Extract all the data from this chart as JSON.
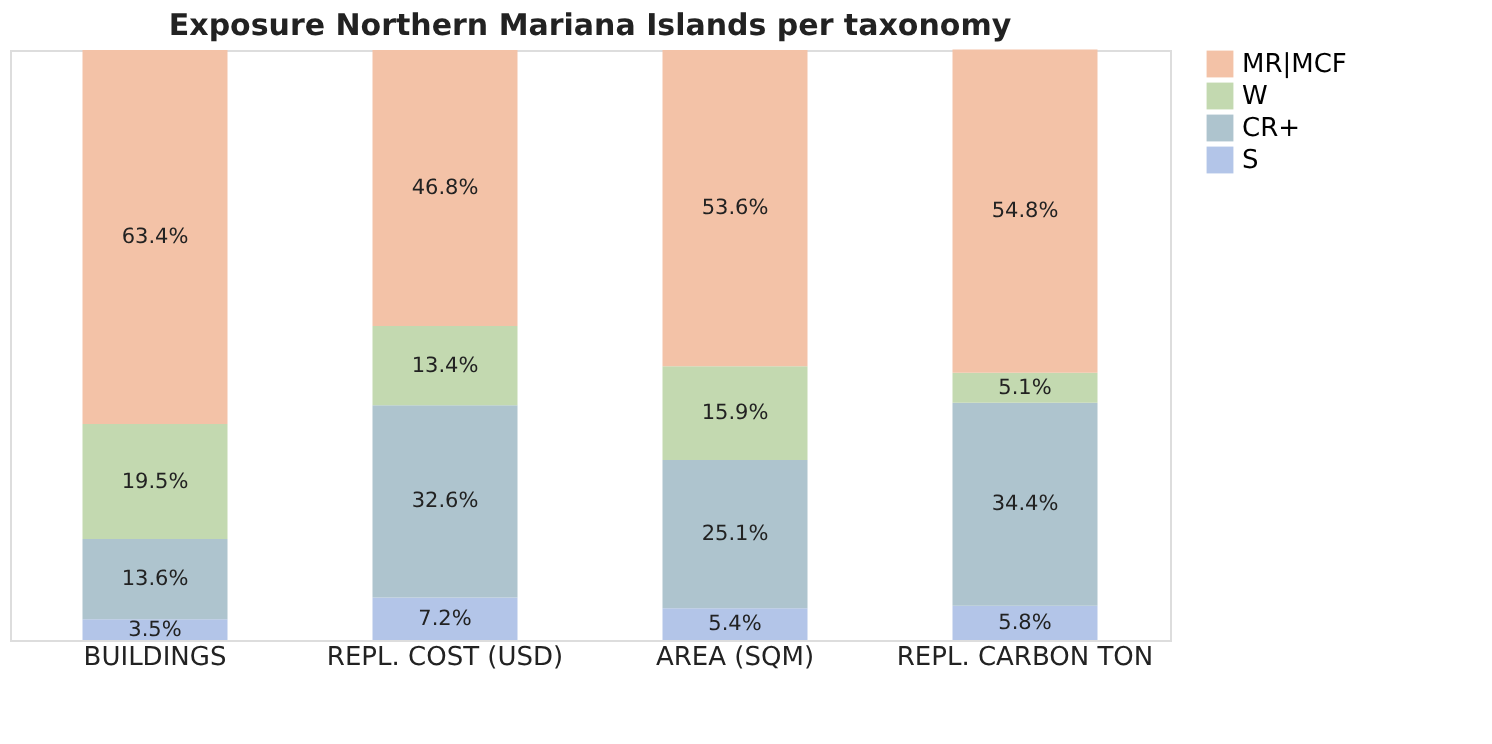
{
  "chart_data": {
    "type": "bar",
    "title": "Exposure Northern Mariana Islands per taxonomy",
    "stacked": true,
    "categories": [
      "BUILDINGS",
      "REPL. COST (USD)",
      "AREA (SQM)",
      "REPL. CARBON TON"
    ],
    "series": [
      {
        "name": "S",
        "color": "#b3c5e8",
        "values": [
          3.5,
          7.2,
          5.4,
          5.8
        ],
        "value_labels": [
          "3.5%",
          "7.2%",
          "5.4%",
          "5.8%"
        ]
      },
      {
        "name": "CR+",
        "color": "#aec4ce",
        "values": [
          13.6,
          32.6,
          25.1,
          34.4
        ],
        "value_labels": [
          "13.6%",
          "32.6%",
          "25.1%",
          "34.4%"
        ]
      },
      {
        "name": "W",
        "color": "#c3d9b0",
        "values": [
          19.5,
          13.4,
          15.9,
          5.1
        ],
        "value_labels": [
          "19.5%",
          "13.4%",
          "15.9%",
          "5.1%"
        ]
      },
      {
        "name": "MR|MCF",
        "color": "#f3c2a7",
        "values": [
          63.4,
          46.8,
          53.6,
          54.8
        ],
        "value_labels": [
          "63.4%",
          "46.8%",
          "53.6%",
          "54.8%"
        ]
      }
    ],
    "ylim": [
      0,
      100
    ],
    "tick_labels": "x",
    "grid": false,
    "legend": "top right"
  }
}
